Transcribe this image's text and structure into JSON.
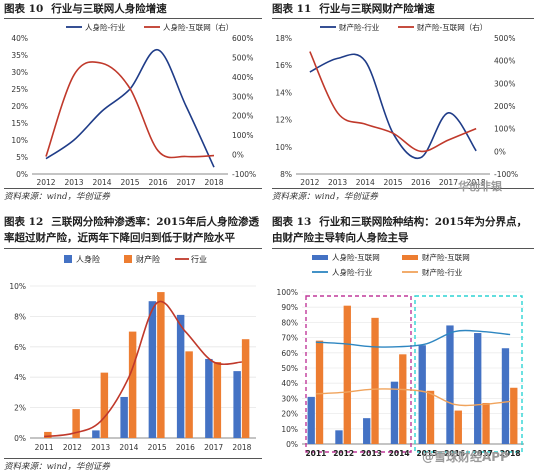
{
  "charts_meta": [
    {
      "fig": "图表 10",
      "title": "行业与三联网人身险增速"
    },
    {
      "fig": "图表 11",
      "title": "行业与三联网财产险增速"
    },
    {
      "fig": "图表 12",
      "title": "三联网分险种渗透率：2015年后人身险渗透率超过财产险，近两年下降回归到低于财产险水平"
    },
    {
      "fig": "图表 13",
      "title": "行业和三联网险种结构：2015年为分界点，由财产险主导转向人身险主导"
    }
  ],
  "source_text": "资料来源：wind，华创证券",
  "watermarks": [
    "华创非银",
    "@雪球财经APP"
  ],
  "colors": {
    "blue": "#1f3c88",
    "orange": "#ed7d31",
    "red": "#c0392b",
    "barblue": "#4472c4",
    "teal": "#2e86c1",
    "pink": "#c0399a",
    "cyan": "#2dd4d4"
  },
  "chart_data": [
    {
      "type": "line",
      "title": "",
      "categories": [
        "2012",
        "2013",
        "2014",
        "2015",
        "2016",
        "2017",
        "2018"
      ],
      "left_axis": {
        "ylim": [
          0,
          0.4
        ],
        "ticks": [
          "0%",
          "5%",
          "10%",
          "15%",
          "20%",
          "25%",
          "30%",
          "35%",
          "40%"
        ]
      },
      "right_axis": {
        "ylim": [
          -100,
          600
        ],
        "ticks": [
          "-100%",
          "0%",
          "100%",
          "200%",
          "300%",
          "400%",
          "500%",
          "600%"
        ]
      },
      "series": [
        {
          "name": "人身险-行业",
          "axis": "left",
          "values": [
            0.045,
            0.1,
            0.185,
            0.25,
            0.365,
            0.2,
            0.02
          ]
        },
        {
          "name": "人身险-互联网（右）",
          "axis": "right",
          "values": [
            -10,
            410,
            470,
            340,
            20,
            -10,
            -5
          ]
        }
      ],
      "legend": "top"
    },
    {
      "type": "line",
      "title": "",
      "categories": [
        "2012",
        "2013",
        "2014",
        "2015",
        "2016",
        "2017",
        "2018"
      ],
      "left_axis": {
        "ylim": [
          0.08,
          0.18
        ],
        "ticks": [
          "8%",
          "10%",
          "12%",
          "14%",
          "16%",
          "18%"
        ]
      },
      "right_axis": {
        "ylim": [
          -100,
          500
        ],
        "ticks": [
          "-100%",
          "0%",
          "100%",
          "200%",
          "300%",
          "400%",
          "500%"
        ]
      },
      "series": [
        {
          "name": "财产险-行业",
          "axis": "left",
          "values": [
            0.155,
            0.165,
            0.163,
            0.11,
            0.092,
            0.125,
            0.097
          ]
        },
        {
          "name": "财产险-互联网（右）",
          "axis": "right",
          "values": [
            440,
            170,
            120,
            80,
            0,
            50,
            100
          ]
        }
      ],
      "legend": "top"
    },
    {
      "type": "bar",
      "title": "",
      "categories": [
        "2011",
        "2012",
        "2013",
        "2014",
        "2015",
        "2016",
        "2017",
        "2018"
      ],
      "ylim": [
        0,
        0.1
      ],
      "ticks": [
        "0%",
        "2%",
        "4%",
        "6%",
        "8%",
        "10%"
      ],
      "series": [
        {
          "name": "人身险",
          "kind": "bar",
          "values": [
            0.0,
            0.0,
            0.005,
            0.027,
            0.09,
            0.081,
            0.052,
            0.044
          ]
        },
        {
          "name": "财产险",
          "kind": "bar",
          "values": [
            0.004,
            0.019,
            0.043,
            0.07,
            0.096,
            0.057,
            0.05,
            0.065
          ]
        },
        {
          "name": "行业",
          "kind": "line",
          "values": [
            0.001,
            0.003,
            0.011,
            0.04,
            0.089,
            0.07,
            0.05,
            0.05
          ]
        }
      ],
      "legend": "top"
    },
    {
      "type": "bar",
      "title": "",
      "categories": [
        "2011",
        "2012",
        "2013",
        "2014",
        "2015",
        "2016",
        "2017",
        "2018"
      ],
      "ylim": [
        0,
        1.0
      ],
      "ticks": [
        "0%",
        "10%",
        "20%",
        "30%",
        "40%",
        "50%",
        "60%",
        "70%",
        "80%",
        "90%",
        "100%"
      ],
      "series": [
        {
          "name": "人身险-互联网",
          "kind": "bar",
          "values": [
            0.31,
            0.09,
            0.17,
            0.41,
            0.65,
            0.78,
            0.73,
            0.63
          ]
        },
        {
          "name": "财产险-互联网",
          "kind": "bar",
          "values": [
            0.68,
            0.91,
            0.83,
            0.59,
            0.35,
            0.22,
            0.27,
            0.37
          ]
        },
        {
          "name": "人身险-行业",
          "kind": "line",
          "values": [
            0.67,
            0.66,
            0.64,
            0.64,
            0.66,
            0.74,
            0.74,
            0.72
          ]
        },
        {
          "name": "财产险-行业",
          "kind": "line",
          "values": [
            0.33,
            0.34,
            0.36,
            0.36,
            0.34,
            0.26,
            0.26,
            0.28
          ]
        }
      ],
      "legend": "top"
    }
  ]
}
